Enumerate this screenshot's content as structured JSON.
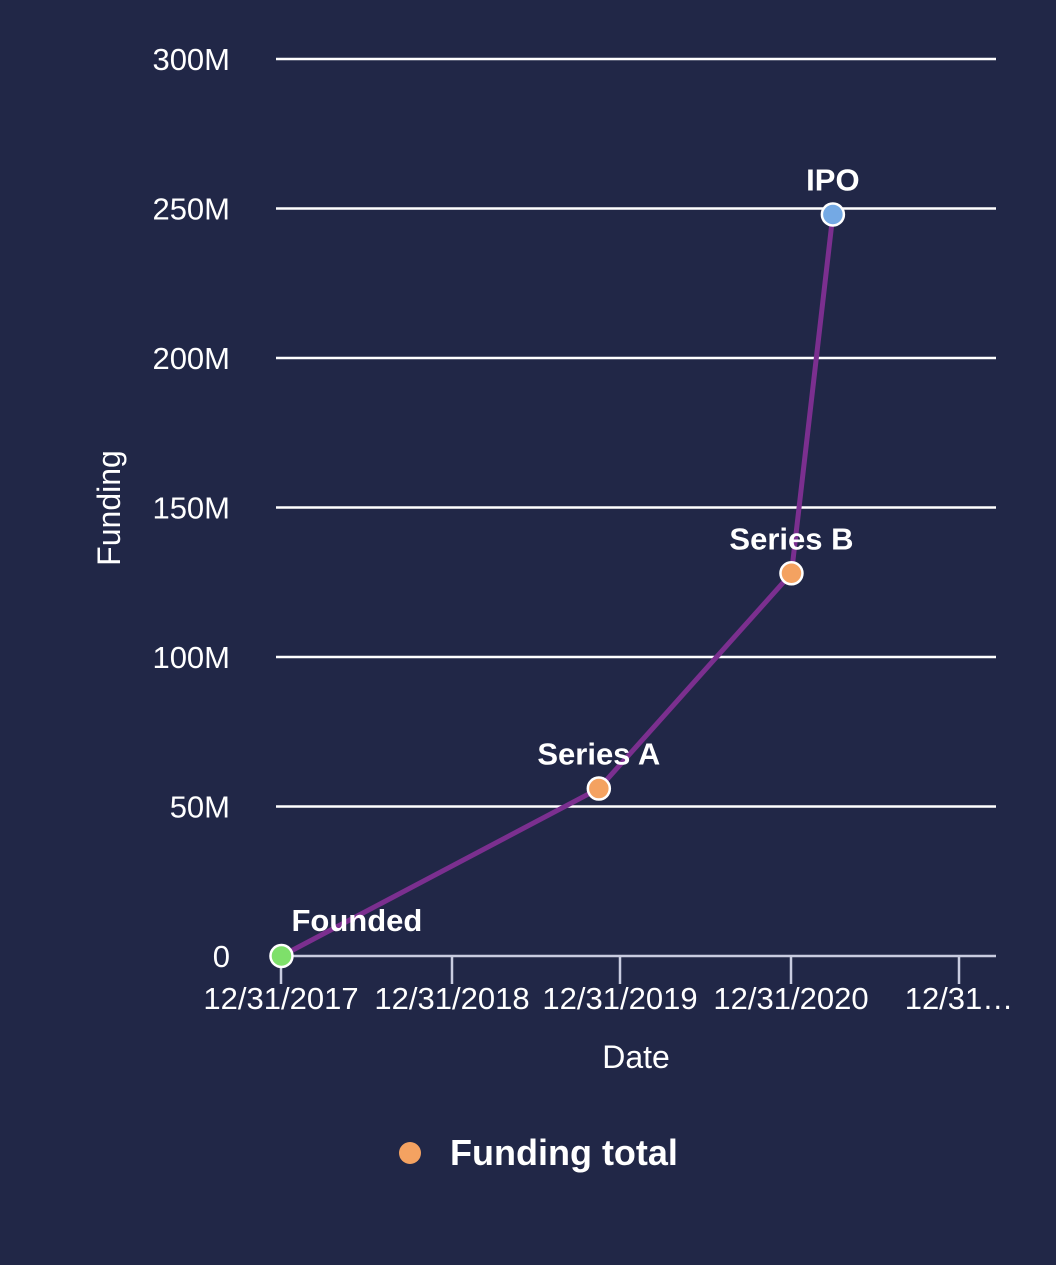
{
  "chart_data": {
    "type": "line",
    "xlabel": "Date",
    "ylabel": "Funding",
    "x_ticks": [
      "12/31/2017",
      "12/31/2018",
      "12/31/2019",
      "12/31/2020",
      "12/31…"
    ],
    "y_ticks": [
      "0",
      "50M",
      "100M",
      "150M",
      "200M",
      "250M",
      "300M"
    ],
    "ylim": [
      0,
      300000000
    ],
    "grid": "horizontal",
    "series": [
      {
        "name": "Funding total",
        "color": "#7b2f8f",
        "points": [
          {
            "x": "2018-01-01",
            "y": 0,
            "label": "Founded",
            "marker_color": "#7ee06a"
          },
          {
            "x": "2019-11-15",
            "y": 56000000,
            "label": "Series A",
            "marker_color": "#f4a261"
          },
          {
            "x": "2021-01-01",
            "y": 128000000,
            "label": "Series B",
            "marker_color": "#f4a261"
          },
          {
            "x": "2021-04-01",
            "y": 248000000,
            "label": "IPO",
            "marker_color": "#74a9e4"
          }
        ]
      }
    ],
    "legend": {
      "position": "bottom-center",
      "entries": [
        {
          "label": "Funding total",
          "color": "#f4a261"
        }
      ]
    }
  }
}
